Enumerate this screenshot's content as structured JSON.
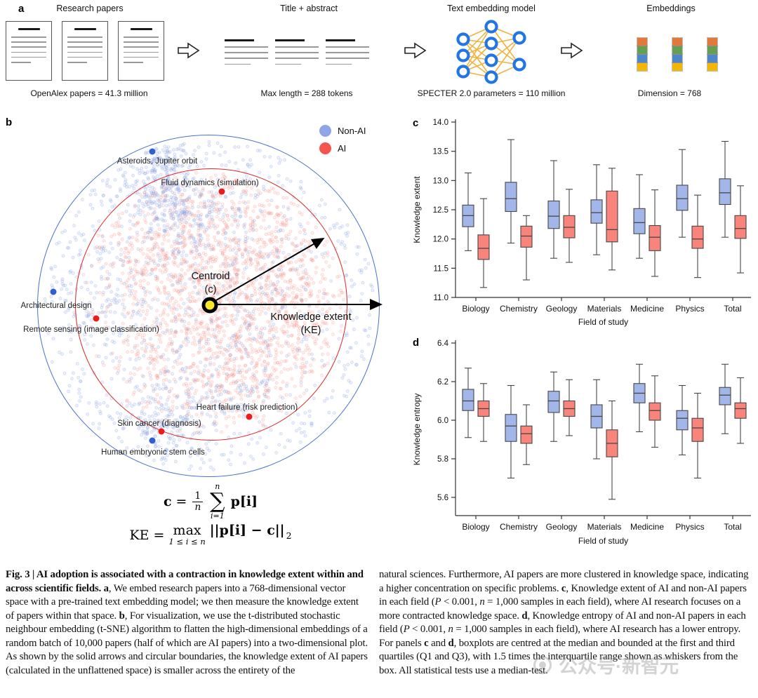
{
  "panels": {
    "a": "a",
    "b": "b",
    "c": "c",
    "d": "d"
  },
  "panel_a": {
    "stages": [
      {
        "title": "Research papers",
        "caption": "OpenAlex papers = 41.3 million"
      },
      {
        "title": "Title + abstract",
        "caption": "Max length = 288 tokens"
      },
      {
        "title": "Text embedding model",
        "caption": "SPECTER 2.0 parameters = 110 million"
      },
      {
        "title": "Embeddings",
        "caption": "Dimension = 768"
      }
    ],
    "embedding_colors": [
      "#e2793b",
      "#64a054",
      "#4e86ca",
      "#f2b705"
    ],
    "nn_node_color": "#2076e8",
    "nn_edge_color": "#f2b33d"
  },
  "panel_b": {
    "legend": [
      {
        "label": "Non-AI",
        "color": "#8fa5e5"
      },
      {
        "label": "AI",
        "color": "#f4544e"
      }
    ],
    "centroid_label": "Centroid",
    "centroid_sub": "(c)",
    "ke_label": "Knowledge extent",
    "ke_sub": "(KE)",
    "annotations": [
      {
        "label": "Asteroids, Jupiter orbit",
        "color": "blue"
      },
      {
        "label": "Fluid dynamics (simulation)",
        "color": "red"
      },
      {
        "label": "Architectural design",
        "color": "blue"
      },
      {
        "label": "Remote sensing (image classification)",
        "color": "red"
      },
      {
        "label": "Heart failure (risk prediction)",
        "color": "red"
      },
      {
        "label": "Skin cancer (diagnosis)",
        "color": "red"
      },
      {
        "label": "Human embryonic stem cells",
        "color": "blue"
      }
    ],
    "dot_colors": {
      "blue": "#2f5fd0",
      "red": "#ea1c1c"
    },
    "point_colors": {
      "non_ai": "rgba(130,158,224,0.55)",
      "ai": "rgba(243,138,128,0.5)"
    },
    "circle_colors": {
      "non_ai": "#4a6fd0",
      "ai": "#e0241f"
    },
    "formula_centroid": {
      "lhs": "c",
      "eq": "=",
      "num": "1",
      "den": "n",
      "sum_top": "n",
      "sigma": "∑",
      "sum_bot": "i=1",
      "body": "p[i]"
    },
    "formula_ke": {
      "lhs": "KE",
      "eq": "=",
      "op": "max",
      "op_sub": "1 ≤ i ≤ n",
      "body": "||p[i] − c||",
      "sub": "2"
    }
  },
  "chart_data": [
    {
      "id": "c",
      "type": "boxplot",
      "ylabel": "Knowledge extent",
      "xlabel": "Field of study",
      "categories": [
        "Biology",
        "Chemistry",
        "Geology",
        "Materials",
        "Medicine",
        "Physics",
        "Total"
      ],
      "ylim": [
        11.0,
        14.0
      ],
      "yticks": [
        [
          14.0,
          "14.0"
        ],
        [
          13.5,
          "13.5"
        ],
        [
          13.0,
          "13.0"
        ],
        [
          12.5,
          "12.5"
        ],
        [
          12.0,
          "12.0"
        ],
        [
          11.5,
          "11.5"
        ],
        [
          11.0,
          "11.0"
        ]
      ],
      "legend_position": "none",
      "grid": false,
      "series": [
        {
          "name": "Non-AI",
          "color": "#a3b6ea",
          "boxes": [
            [
              11.8,
              12.21,
              12.4,
              12.58,
              13.13
            ],
            [
              11.93,
              12.47,
              12.69,
              12.97,
              13.7
            ],
            [
              11.67,
              12.18,
              12.39,
              12.65,
              13.34
            ],
            [
              11.73,
              12.27,
              12.45,
              12.67,
              13.27
            ],
            [
              11.67,
              12.09,
              12.28,
              12.52,
              13.1
            ],
            [
              12.03,
              12.49,
              12.69,
              12.92,
              13.53
            ],
            [
              12.03,
              12.59,
              12.79,
              13.03,
              13.67
            ]
          ]
        },
        {
          "name": "AI",
          "color": "#f8847c",
          "boxes": [
            [
              11.17,
              11.65,
              11.84,
              12.07,
              12.69
            ],
            [
              11.3,
              11.86,
              12.05,
              12.22,
              12.4
            ],
            [
              11.6,
              12.02,
              12.2,
              12.4,
              12.85
            ],
            [
              11.47,
              11.95,
              12.16,
              12.82,
              13.21
            ],
            [
              11.36,
              11.8,
              12.03,
              12.23,
              12.84
            ],
            [
              11.34,
              11.84,
              12.0,
              12.22,
              12.75
            ],
            [
              11.42,
              12.01,
              12.18,
              12.4,
              12.91
            ]
          ]
        }
      ]
    },
    {
      "id": "d",
      "type": "boxplot",
      "ylabel": "Knowledge entropy",
      "xlabel": "Field of study",
      "categories": [
        "Biology",
        "Chemistry",
        "Geology",
        "Materials",
        "Medicine",
        "Physics",
        "Total"
      ],
      "ylim": [
        5.5,
        6.4
      ],
      "yticks": [
        [
          6.4,
          "6.4"
        ],
        [
          6.2,
          "6.2"
        ],
        [
          6.0,
          "6.0"
        ],
        [
          5.8,
          "5.8"
        ],
        [
          5.6,
          "5.6"
        ]
      ],
      "legend_position": "none",
      "grid": false,
      "series": [
        {
          "name": "Non-AI",
          "color": "#a3b6ea",
          "boxes": [
            [
              5.91,
              6.05,
              6.1,
              6.16,
              6.27
            ],
            [
              5.7,
              5.89,
              5.97,
              6.03,
              6.18
            ],
            [
              5.89,
              6.04,
              6.1,
              6.15,
              6.25
            ],
            [
              5.8,
              5.96,
              6.02,
              6.08,
              6.21
            ],
            [
              5.94,
              6.09,
              6.14,
              6.19,
              6.29
            ],
            [
              5.82,
              5.95,
              6.01,
              6.05,
              6.18
            ],
            [
              5.93,
              6.08,
              6.13,
              6.17,
              6.29
            ]
          ]
        },
        {
          "name": "AI",
          "color": "#f8847c",
          "boxes": [
            [
              5.89,
              6.02,
              6.06,
              6.1,
              6.19
            ],
            [
              5.77,
              5.88,
              5.93,
              5.97,
              6.08
            ],
            [
              5.92,
              6.02,
              6.06,
              6.1,
              6.21
            ],
            [
              5.59,
              5.81,
              5.88,
              5.95,
              6.1
            ],
            [
              5.86,
              6.0,
              6.05,
              6.09,
              6.23
            ],
            [
              5.7,
              5.89,
              5.96,
              6.01,
              6.14
            ],
            [
              5.88,
              6.01,
              6.06,
              6.09,
              6.22
            ]
          ]
        }
      ]
    }
  ],
  "caption": {
    "left": [
      {
        "t": "Fig. 3 | AI adoption is associated with a contraction in knowledge extent within and across scientific fields. ",
        "b": 1
      },
      {
        "t": "a",
        "b": 1
      },
      {
        "t": ", We embed research papers into a 768-dimensional vector space with a pre-trained text embedding model; we then measure the knowledge extent of papers within that space. "
      },
      {
        "t": "b",
        "b": 1
      },
      {
        "t": ", For visualization, we use the t-distributed stochastic neighbour embedding (t-SNE) algorithm to flatten the high-dimensional embeddings of a random batch of 10,000 papers (half of which are AI papers) into a two-dimensional plot. As shown by the solid arrows and circular boundaries, the knowledge extent of AI papers (calculated in the unflattened space) is smaller across the entirety of the"
      }
    ],
    "right": [
      {
        "t": "natural sciences. Furthermore, AI papers are more clustered in knowledge space, indicating a higher concentration on specific problems. "
      },
      {
        "t": "c",
        "b": 1
      },
      {
        "t": ", Knowledge extent of AI and non-AI papers in each field ("
      },
      {
        "t": "P",
        "i": 1
      },
      {
        "t": " < 0.001, "
      },
      {
        "t": "n",
        "i": 1
      },
      {
        "t": " = 1,000 samples in each field), where AI research focuses on a more contracted knowledge space. "
      },
      {
        "t": "d",
        "b": 1
      },
      {
        "t": ", Knowledge entropy of AI and non-AI papers in each field ("
      },
      {
        "t": "P",
        "i": 1
      },
      {
        "t": " < 0.001, "
      },
      {
        "t": "n",
        "i": 1
      },
      {
        "t": " = 1,000 samples in each field), where AI research has a lower entropy. For panels "
      },
      {
        "t": "c",
        "b": 1
      },
      {
        "t": " and "
      },
      {
        "t": "d",
        "b": 1
      },
      {
        "t": ", boxplots are centred at the median and bounded at the first and third quartiles (Q1 and Q3), with 1.5 times the interquartile range shown as whiskers from the box. All statistical tests use a median-test."
      }
    ]
  },
  "watermark": {
    "text": "公众号·新智元"
  }
}
